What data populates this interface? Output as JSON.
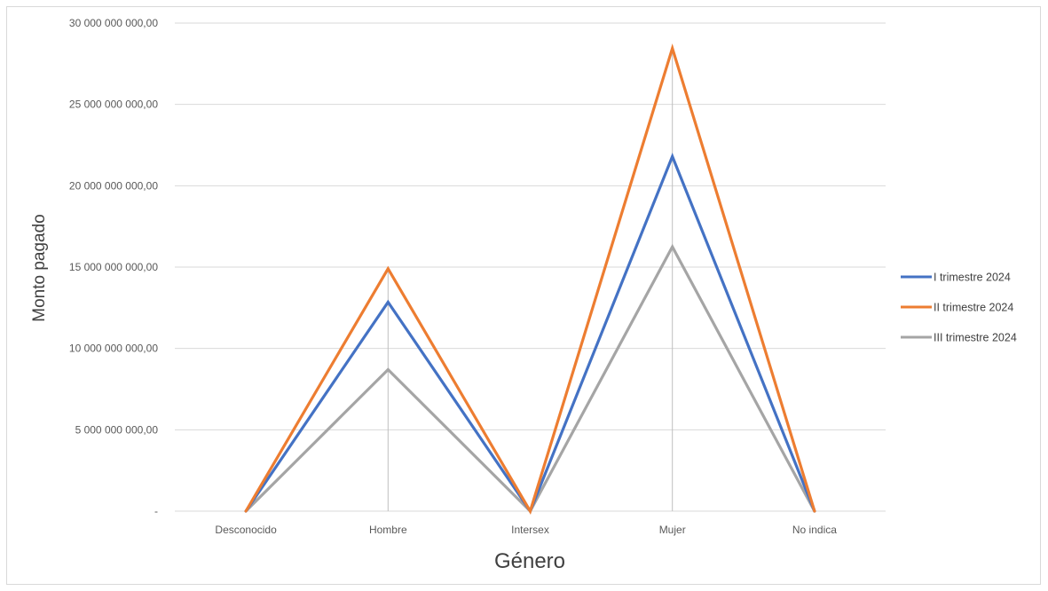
{
  "chart_data": {
    "type": "line",
    "xlabel": "Género",
    "ylabel": "Monto pagado",
    "categories": [
      "Desconocido",
      "Hombre",
      "Intersex",
      "Mujer",
      "No indica"
    ],
    "ylim": [
      0,
      30000000000
    ],
    "y_ticks": [
      {
        "value": 0,
        "label": "-"
      },
      {
        "value": 5000000000,
        "label": "5 000 000 000,00"
      },
      {
        "value": 10000000000,
        "label": "10 000 000 000,00"
      },
      {
        "value": 15000000000,
        "label": "15 000 000 000,00"
      },
      {
        "value": 20000000000,
        "label": "20 000 000 000,00"
      },
      {
        "value": 25000000000,
        "label": "25 000 000 000,00"
      },
      {
        "value": 30000000000,
        "label": "30 000 000 000,00"
      }
    ],
    "grid": true,
    "legend_position": "right",
    "series": [
      {
        "name": "I trimestre 2024",
        "color": "#4472C4",
        "values": [
          0,
          12850000000,
          0,
          21800000000,
          0
        ]
      },
      {
        "name": "II trimestre 2024",
        "color": "#ED7D31",
        "values": [
          0,
          14900000000,
          0,
          28450000000,
          0
        ]
      },
      {
        "name": "III trimestre 2024",
        "color": "#A5A5A5",
        "values": [
          0,
          8700000000,
          0,
          16250000000,
          0
        ]
      }
    ]
  }
}
